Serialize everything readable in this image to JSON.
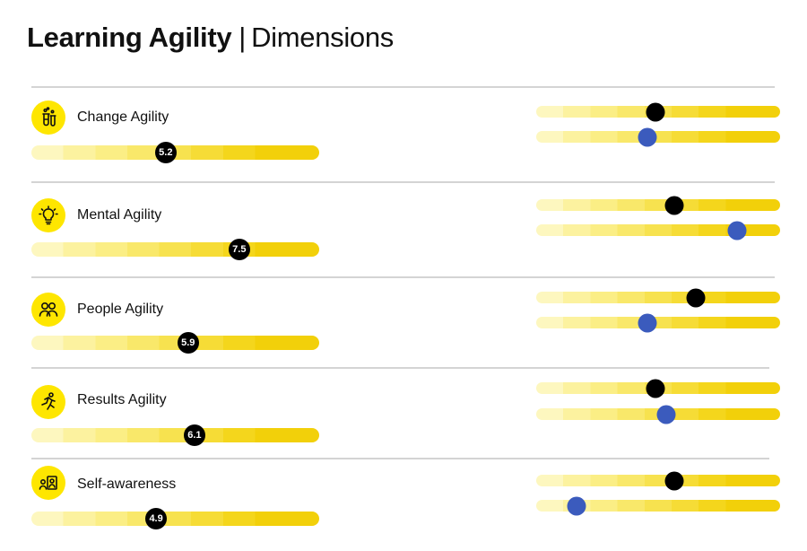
{
  "header": {
    "title_bold": "Learning Agility",
    "separator": "|",
    "title_rest": "Dimensions"
  },
  "colors": {
    "accent": "#fee600",
    "marker_primary": "#000000",
    "marker_secondary": "#3b5bbd"
  },
  "chart_data": {
    "type": "bar",
    "scale": [
      1,
      10
    ],
    "categories": [
      "Change Agility",
      "Mental Agility",
      "People Agility",
      "Results Agility",
      "Self-awareness"
    ],
    "values": [
      5.2,
      7.5,
      5.9,
      6.1,
      4.9
    ],
    "comparison_series": [
      {
        "values": [
          5.4,
          6.1,
          6.9,
          5.4,
          6.1
        ],
        "color": "#000000"
      },
      {
        "values": [
          5.1,
          8.4,
          5.1,
          5.8,
          2.5
        ],
        "color": "#3b5bbd"
      }
    ]
  },
  "dimensions": [
    {
      "label": "Change Agility",
      "value_label": "5.2",
      "icon": "flask-icon"
    },
    {
      "label": "Mental Agility",
      "value_label": "7.5",
      "icon": "lightbulb-icon"
    },
    {
      "label": "People Agility",
      "value_label": "5.9",
      "icon": "people-icon"
    },
    {
      "label": "Results Agility",
      "value_label": "6.1",
      "icon": "runner-icon"
    },
    {
      "label": "Self-awareness",
      "value_label": "4.9",
      "icon": "mirror-icon"
    }
  ]
}
